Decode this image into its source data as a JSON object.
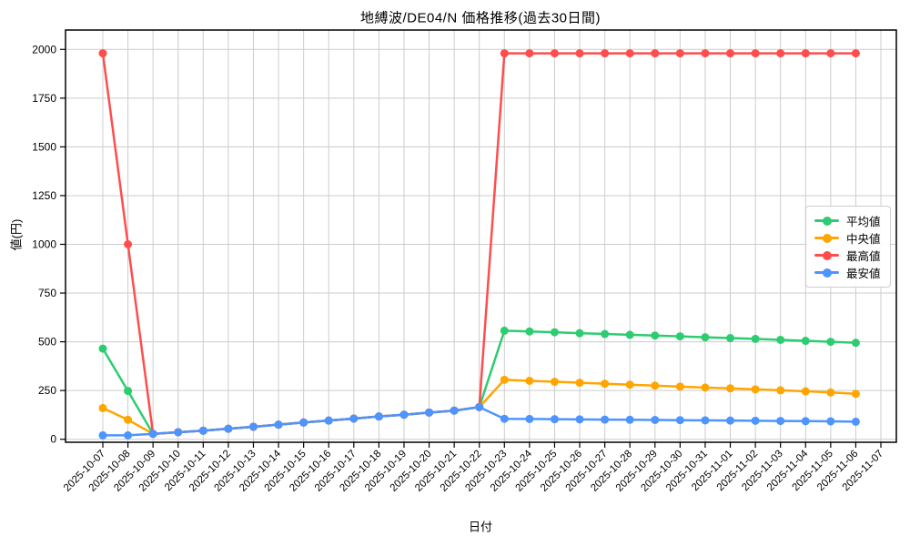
{
  "chart_data": {
    "type": "line",
    "title": "地縛波/DE04/N 価格推移(過去30日間)",
    "xlabel": "日付",
    "ylabel": "値(円)",
    "ylim": [
      0,
      2000
    ],
    "yticks": [
      0,
      250,
      500,
      750,
      1000,
      1250,
      1500,
      1750,
      2000
    ],
    "grid": true,
    "legend_position": "upper-right-inside",
    "x": [
      "2025-10-07",
      "2025-10-08",
      "2025-10-09",
      "2025-10-10",
      "2025-10-11",
      "2025-10-12",
      "2025-10-13",
      "2025-10-14",
      "2025-10-15",
      "2025-10-16",
      "2025-10-17",
      "2025-10-18",
      "2025-10-19",
      "2025-10-20",
      "2025-10-21",
      "2025-10-22",
      "2025-10-23",
      "2025-10-24",
      "2025-10-25",
      "2025-10-26",
      "2025-10-27",
      "2025-10-28",
      "2025-10-29",
      "2025-10-30",
      "2025-10-31",
      "2025-11-01",
      "2025-11-02",
      "2025-11-03",
      "2025-11-04",
      "2025-11-05",
      "2025-11-06",
      "2025-11-07"
    ],
    "series": [
      {
        "key": "average",
        "name": "平均値",
        "color": "#2ECC71",
        "values": [
          465,
          248,
          28,
          36,
          44,
          54,
          64,
          75,
          86,
          96,
          106,
          117,
          126,
          137,
          147,
          165,
          557,
          553,
          549,
          544,
          540,
          536,
          532,
          528,
          523,
          519,
          515,
          510,
          505,
          500,
          495,
          null
        ]
      },
      {
        "key": "median",
        "name": "中央値",
        "color": "#FFA502",
        "values": [
          160,
          100,
          28,
          36,
          44,
          54,
          64,
          75,
          86,
          96,
          106,
          117,
          126,
          137,
          147,
          165,
          305,
          300,
          295,
          290,
          285,
          280,
          275,
          270,
          265,
          261,
          256,
          251,
          246,
          240,
          233,
          null
        ]
      },
      {
        "key": "max",
        "name": "最高値",
        "color": "#FF4D4D",
        "values": [
          1980,
          1000,
          28,
          36,
          44,
          54,
          64,
          75,
          86,
          96,
          106,
          117,
          126,
          137,
          147,
          165,
          1980,
          1980,
          1980,
          1980,
          1980,
          1980,
          1980,
          1980,
          1980,
          1980,
          1980,
          1980,
          1980,
          1980,
          1980,
          null
        ]
      },
      {
        "key": "min",
        "name": "最安値",
        "color": "#4D94FF",
        "values": [
          20,
          20,
          28,
          36,
          44,
          54,
          64,
          75,
          86,
          96,
          106,
          117,
          126,
          137,
          147,
          165,
          105,
          104,
          103,
          102,
          101,
          100,
          99,
          98,
          97,
          96,
          95,
          94,
          93,
          92,
          90,
          null
        ]
      }
    ],
    "style": {
      "grid_color": "#cccccc",
      "spine_color": "#000000",
      "background": "#ffffff",
      "marker_radius": 4.5,
      "line_width": 2.5
    }
  }
}
